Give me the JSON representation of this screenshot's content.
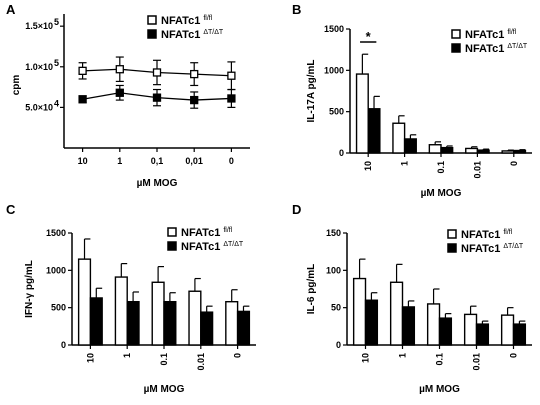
{
  "chart_data": [
    {
      "panel": "A",
      "type": "line",
      "ylabel": "cpm",
      "xlabel": "µM MOG",
      "categories": [
        "10",
        "1",
        "0,1",
        "0,01",
        "0"
      ],
      "yticks": [
        "5.0×10",
        "1.0×10",
        "1.5×10"
      ],
      "ytick_exponents": [
        "4",
        "5",
        "5"
      ],
      "ytick_values": [
        50000,
        100000,
        150000
      ],
      "ylim": [
        0,
        165000
      ],
      "legend_position": "top-right",
      "series": [
        {
          "name": "NFATc1",
          "superscript": "fl/fl",
          "marker": "open-square",
          "values": [
            95000,
            97000,
            93000,
            91000,
            89000
          ],
          "errors": [
            10000,
            15000,
            15000,
            14000,
            17000
          ]
        },
        {
          "name": "NFATc1",
          "superscript": "ΔT/ΔT",
          "marker": "filled-square",
          "values": [
            60000,
            68000,
            62000,
            59000,
            61000
          ],
          "errors": [
            4000,
            9000,
            10000,
            10000,
            11000
          ]
        }
      ]
    },
    {
      "panel": "B",
      "type": "bar",
      "ylabel": "IL-17A pg/mL",
      "xlabel": "µM MOG",
      "categories": [
        "10",
        "1",
        "0.1",
        "0.01",
        "0"
      ],
      "yticks": [
        "0",
        "500",
        "1000",
        "1500"
      ],
      "ytick_values": [
        0,
        500,
        1000,
        1500
      ],
      "ylim": [
        0,
        1500
      ],
      "legend_position": "top-right",
      "annotation": "*",
      "series": [
        {
          "name": "NFATc1",
          "superscript": "fl/fl",
          "fill": "white",
          "values": [
            955,
            360,
            100,
            55,
            25
          ],
          "errors": [
            240,
            90,
            35,
            20,
            10
          ]
        },
        {
          "name": "NFATc1",
          "superscript": "ΔT/ΔT",
          "fill": "black",
          "values": [
            535,
            170,
            65,
            35,
            30
          ],
          "errors": [
            150,
            50,
            20,
            12,
            10
          ]
        }
      ]
    },
    {
      "panel": "C",
      "type": "bar",
      "ylabel": "IFN-γ pg/mL",
      "xlabel": "µM MOG",
      "categories": [
        "10",
        "1",
        "0.1",
        "0.01",
        "0"
      ],
      "yticks": [
        "0",
        "500",
        "1000",
        "1500"
      ],
      "ytick_values": [
        0,
        500,
        1000,
        1500
      ],
      "ylim": [
        0,
        1500
      ],
      "legend_position": "top-right",
      "series": [
        {
          "name": "NFATc1",
          "superscript": "fl/fl",
          "fill": "white",
          "values": [
            1150,
            910,
            840,
            720,
            580
          ],
          "errors": [
            270,
            180,
            210,
            170,
            160
          ]
        },
        {
          "name": "NFATc1",
          "superscript": "ΔT/ΔT",
          "fill": "black",
          "values": [
            630,
            580,
            580,
            440,
            450
          ],
          "errors": [
            130,
            130,
            120,
            80,
            70
          ]
        }
      ]
    },
    {
      "panel": "D",
      "type": "bar",
      "ylabel": "IL-6 pg/mL",
      "xlabel": "µM MOG",
      "categories": [
        "10",
        "1",
        "0.1",
        "0.01",
        "0"
      ],
      "yticks": [
        "0",
        "50",
        "100",
        "150"
      ],
      "ytick_values": [
        0,
        50,
        100,
        150
      ],
      "ylim": [
        0,
        150
      ],
      "legend_position": "top-right",
      "series": [
        {
          "name": "NFATc1",
          "superscript": "fl/fl",
          "fill": "white",
          "values": [
            89,
            84,
            55,
            41,
            40
          ],
          "errors": [
            26,
            24,
            20,
            11,
            10
          ]
        },
        {
          "name": "NFATc1",
          "superscript": "ΔT/ΔT",
          "fill": "black",
          "values": [
            60,
            51,
            36,
            28,
            28
          ],
          "errors": [
            10,
            8,
            6,
            4,
            4
          ]
        }
      ]
    }
  ]
}
